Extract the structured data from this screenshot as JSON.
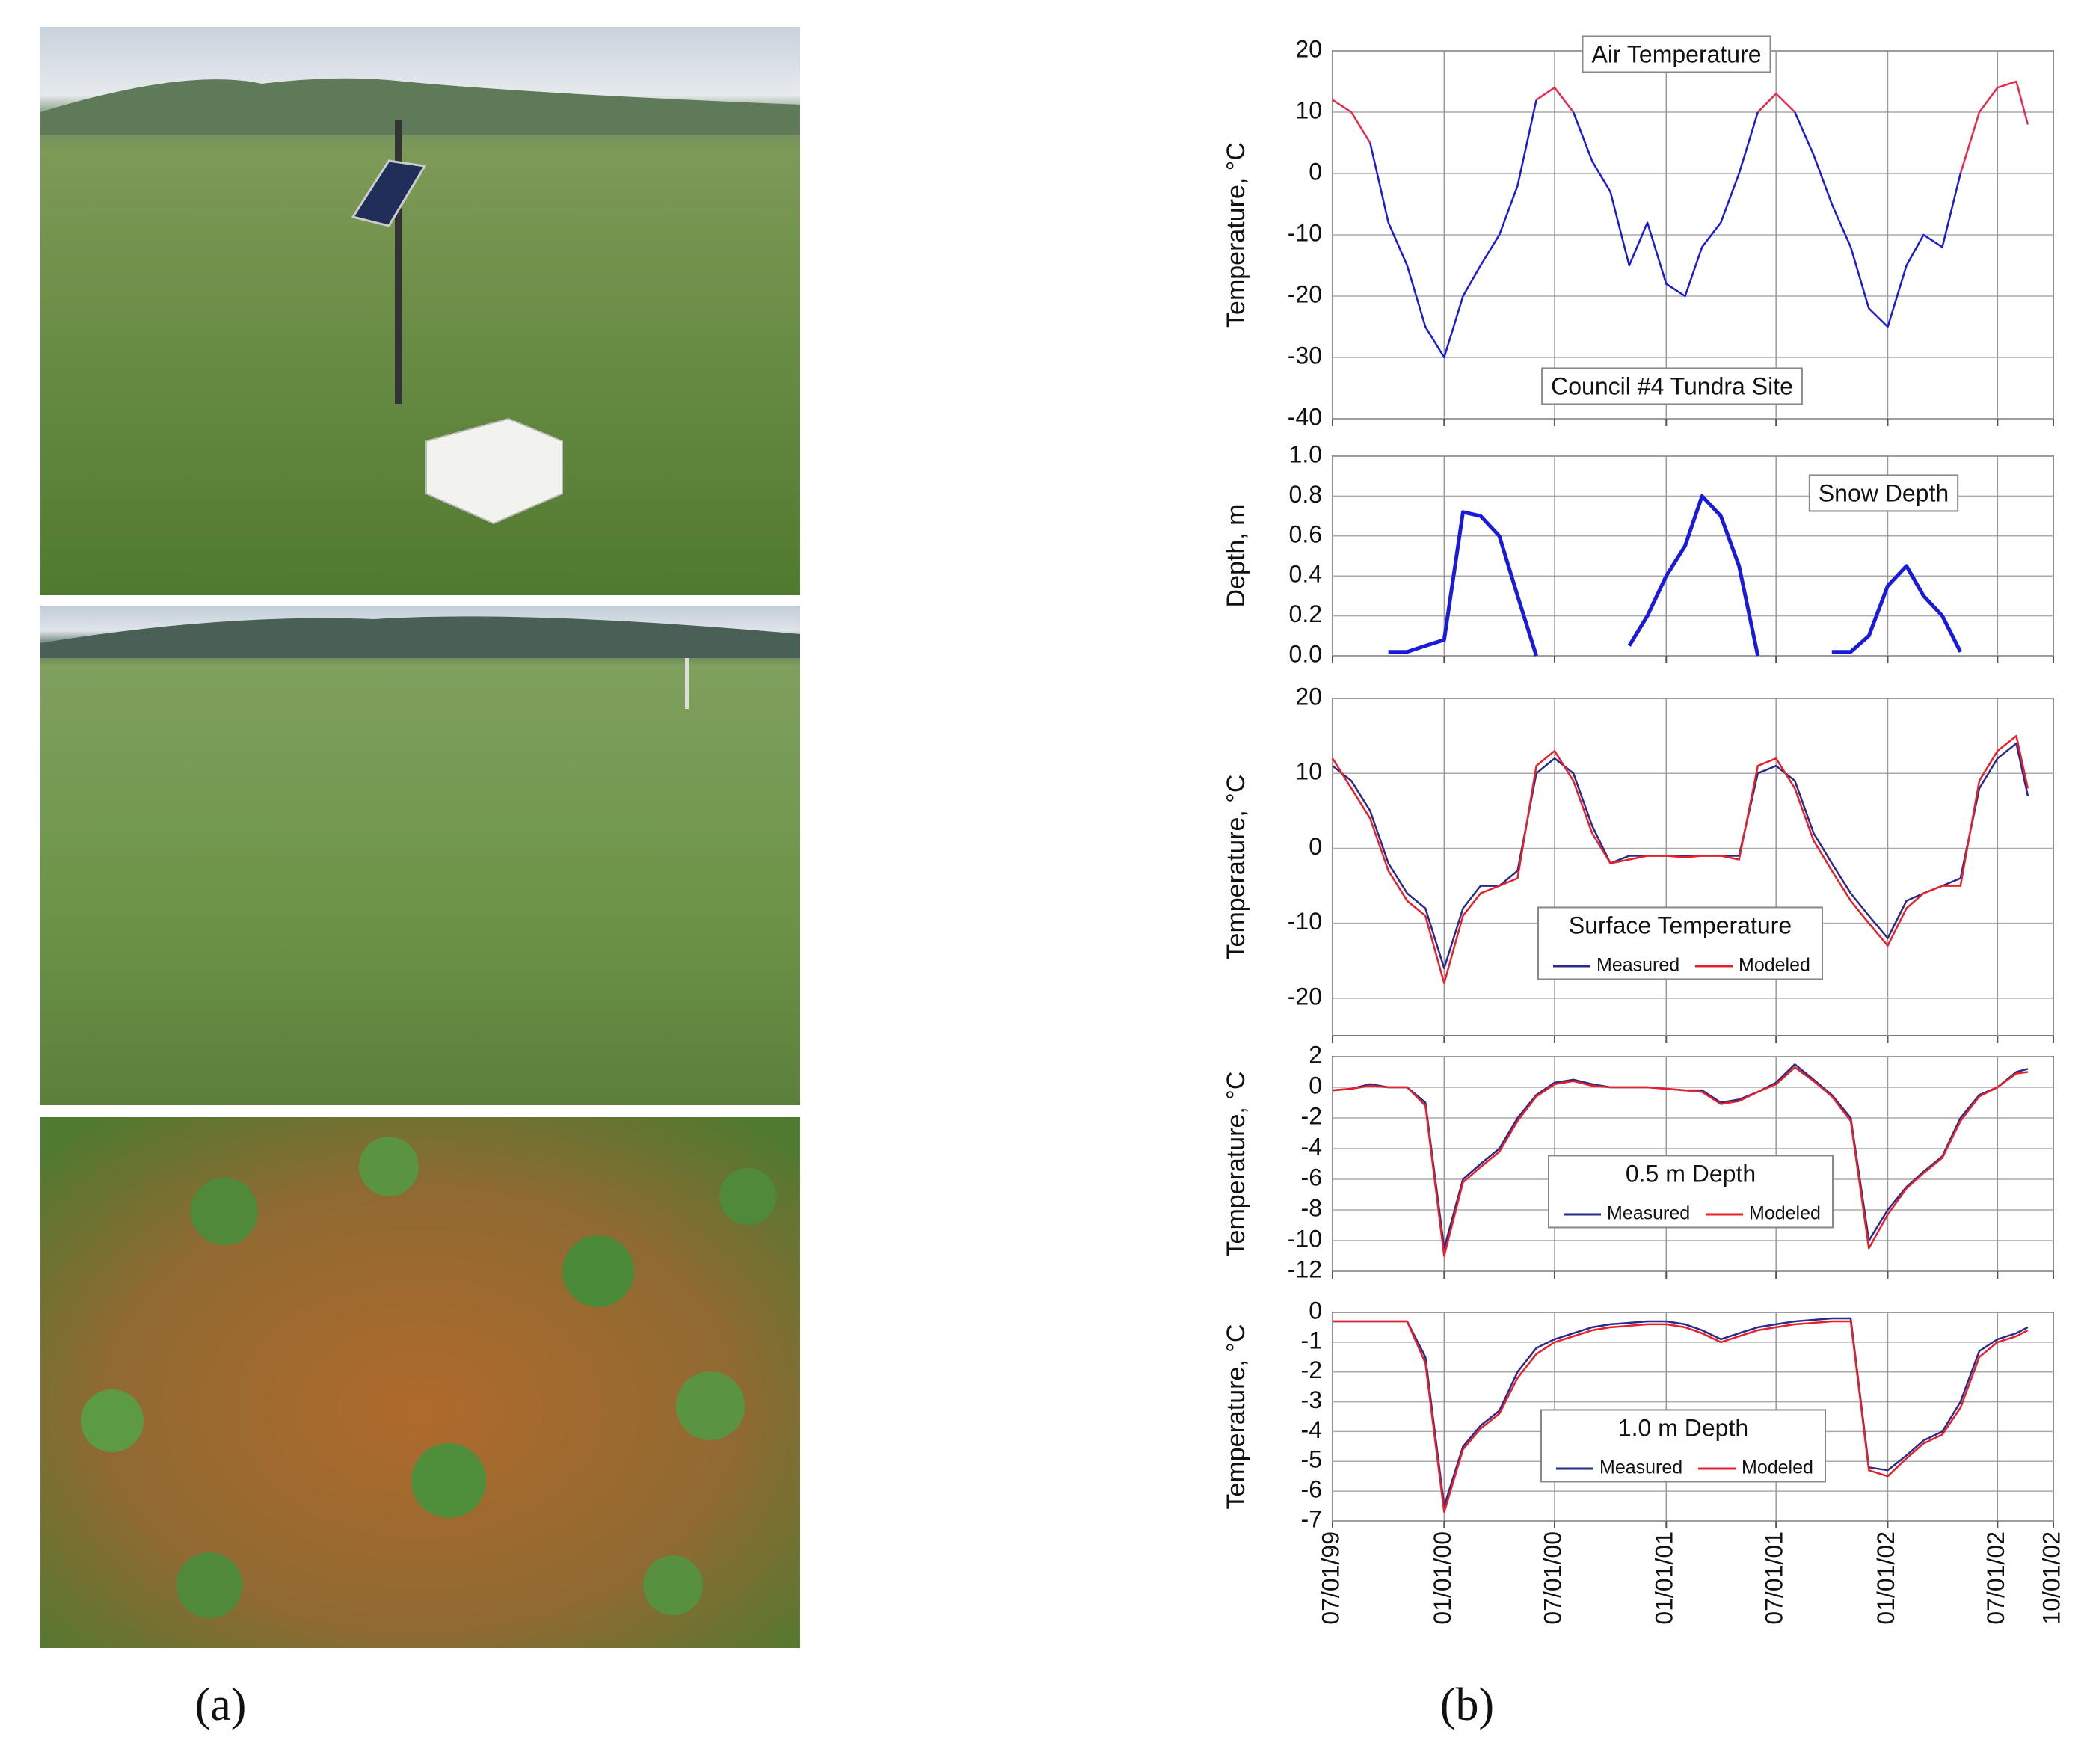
{
  "panel_labels": {
    "a": "(a)",
    "b": "(b)"
  },
  "chart_data": [
    {
      "type": "line",
      "ylabel": "Temperature, °C",
      "annotations": [
        "Air Temperature",
        "Council #4 Tundra Site"
      ],
      "x": [
        "1999-07-01",
        "1999-08-01",
        "1999-09-01",
        "1999-10-01",
        "1999-11-01",
        "1999-12-01",
        "2000-01-01",
        "2000-02-01",
        "2000-03-01",
        "2000-04-01",
        "2000-05-01",
        "2000-06-01",
        "2000-07-01",
        "2000-08-01",
        "2000-09-01",
        "2000-10-01",
        "2000-11-01",
        "2000-12-01",
        "2001-01-01",
        "2001-02-01",
        "2001-03-01",
        "2001-04-01",
        "2001-05-01",
        "2001-06-01",
        "2001-07-01",
        "2001-08-01",
        "2001-09-01",
        "2001-10-01",
        "2001-11-01",
        "2001-12-01",
        "2002-01-01",
        "2002-02-01",
        "2002-03-01",
        "2002-04-01",
        "2002-05-01",
        "2002-06-01",
        "2002-07-01",
        "2002-08-01",
        "2002-08-20"
      ],
      "series": [
        {
          "color": "#e8294a",
          "values": [
            12,
            10,
            5,
            null,
            null,
            null,
            null,
            null,
            null,
            null,
            null,
            12,
            14,
            10,
            null,
            null,
            null,
            null,
            null,
            null,
            null,
            null,
            null,
            10,
            13,
            10,
            null,
            null,
            null,
            null,
            null,
            null,
            null,
            null,
            0,
            10,
            14,
            15,
            8
          ]
        },
        {
          "color": "#1a1adc",
          "values": [
            null,
            null,
            5,
            -8,
            -15,
            -25,
            -30,
            -20,
            -15,
            -10,
            -2,
            12,
            null,
            10,
            2,
            -3,
            -15,
            -8,
            -18,
            -20,
            -12,
            -8,
            0,
            10,
            null,
            10,
            3,
            -5,
            -12,
            -22,
            -25,
            -15,
            -10,
            -12,
            0,
            null,
            null,
            null,
            null
          ]
        }
      ],
      "xlim": [
        "1999-07-01",
        "2002-10-01"
      ],
      "xticks": [
        "1999-07-01",
        "2000-01-01",
        "2000-07-01",
        "2001-01-01",
        "2001-07-01",
        "2002-01-01",
        "2002-07-01",
        "2002-10-01"
      ],
      "ylim": [
        -40,
        20
      ],
      "yticks": [
        -40,
        -30,
        -20,
        -10,
        0,
        10,
        20
      ],
      "grid": true
    },
    {
      "type": "line",
      "ylabel": "Depth, m",
      "annotations": [
        "Snow Depth"
      ],
      "x": [
        "1999-07-01",
        "1999-08-01",
        "1999-09-01",
        "1999-10-01",
        "1999-11-01",
        "1999-12-01",
        "2000-01-01",
        "2000-02-01",
        "2000-03-01",
        "2000-04-01",
        "2000-05-01",
        "2000-06-01",
        "2000-07-01",
        "2000-08-01",
        "2000-09-01",
        "2000-10-01",
        "2000-11-01",
        "2000-12-01",
        "2001-01-01",
        "2001-02-01",
        "2001-03-01",
        "2001-04-01",
        "2001-05-01",
        "2001-06-01",
        "2001-07-01",
        "2001-08-01",
        "2001-09-01",
        "2001-10-01",
        "2001-11-01",
        "2001-12-01",
        "2002-01-01",
        "2002-02-01",
        "2002-03-01",
        "2002-04-01",
        "2002-05-01",
        "2002-06-01",
        "2002-07-01",
        "2002-08-01",
        "2002-08-20"
      ],
      "series": [
        {
          "color": "#1a1adc",
          "values": [
            null,
            null,
            null,
            0.02,
            0.02,
            0.05,
            0.08,
            0.72,
            0.7,
            0.6,
            0.3,
            0,
            null,
            null,
            null,
            null,
            0.05,
            0.2,
            0.4,
            0.55,
            0.8,
            0.7,
            0.45,
            0,
            null,
            null,
            null,
            0.02,
            0.02,
            0.1,
            0.35,
            0.45,
            0.3,
            0.2,
            0.02,
            null,
            null,
            null,
            null
          ]
        }
      ],
      "xlim": [
        "1999-07-01",
        "2002-10-01"
      ],
      "xticks": [
        "1999-07-01",
        "2000-01-01",
        "2000-07-01",
        "2001-01-01",
        "2001-07-01",
        "2002-01-01",
        "2002-07-01",
        "2002-10-01"
      ],
      "ylim": [
        0,
        1
      ],
      "yticks": [
        {
          "value": 0,
          "label": "0.0"
        },
        0.2,
        0.4,
        0.6,
        0.8,
        {
          "value": 1,
          "label": "1.0"
        }
      ],
      "grid": true
    },
    {
      "type": "line",
      "ylabel": "Temperature, °C",
      "annotations": [
        "Surface Temperature"
      ],
      "x": [
        "1999-07-01",
        "1999-08-01",
        "1999-09-01",
        "1999-10-01",
        "1999-11-01",
        "1999-12-01",
        "2000-01-01",
        "2000-02-01",
        "2000-03-01",
        "2000-04-01",
        "2000-05-01",
        "2000-06-01",
        "2000-07-01",
        "2000-08-01",
        "2000-09-01",
        "2000-10-01",
        "2000-11-01",
        "2000-12-01",
        "2001-01-01",
        "2001-02-01",
        "2001-03-01",
        "2001-04-01",
        "2001-05-01",
        "2001-06-01",
        "2001-07-01",
        "2001-08-01",
        "2001-09-01",
        "2001-10-01",
        "2001-11-01",
        "2001-12-01",
        "2002-01-01",
        "2002-02-01",
        "2002-03-01",
        "2002-04-01",
        "2002-05-01",
        "2002-06-01",
        "2002-07-01",
        "2002-08-01",
        "2002-08-20"
      ],
      "series": [
        {
          "name": "Measured",
          "color": "#2a2a8c",
          "values": [
            11,
            9,
            5,
            -2,
            -6,
            -8,
            -16,
            -8,
            -5,
            -5,
            -3,
            10,
            12,
            10,
            3,
            -2,
            -1,
            -1,
            -1,
            -1,
            -1,
            -1,
            -1,
            10,
            11,
            9,
            2,
            -2,
            -6,
            -9,
            -12,
            -7,
            -6,
            -5,
            -4,
            8,
            12,
            14,
            7
          ]
        },
        {
          "name": "Modeled",
          "color": "#e8202a",
          "values": [
            12,
            8,
            4,
            -3,
            -7,
            -9,
            -18,
            -9,
            -6,
            -5,
            -4,
            11,
            13,
            9,
            2,
            -2,
            -1.5,
            -1,
            -1,
            -1.2,
            -1,
            -1,
            -1.5,
            11,
            12,
            8,
            1,
            -3,
            -7,
            -10,
            -13,
            -8,
            -6,
            -5,
            -5,
            9,
            13,
            15,
            8
          ]
        }
      ],
      "legend": "lower center",
      "xlim": [
        "1999-07-01",
        "2002-10-01"
      ],
      "xticks": [
        "1999-07-01",
        "2000-01-01",
        "2000-07-01",
        "2001-01-01",
        "2001-07-01",
        "2002-01-01",
        "2002-07-01",
        "2002-10-01"
      ],
      "ylim": [
        -25,
        20
      ],
      "yticks": [
        -20,
        -10,
        0,
        10,
        20
      ],
      "grid": true
    },
    {
      "type": "line",
      "ylabel": "Temperature, °C",
      "annotations": [
        "0.5 m Depth"
      ],
      "x": [
        "1999-07-01",
        "1999-08-01",
        "1999-09-01",
        "1999-10-01",
        "1999-11-01",
        "1999-12-01",
        "2000-01-01",
        "2000-02-01",
        "2000-03-01",
        "2000-04-01",
        "2000-05-01",
        "2000-06-01",
        "2000-07-01",
        "2000-08-01",
        "2000-09-01",
        "2000-10-01",
        "2000-11-01",
        "2000-12-01",
        "2001-01-01",
        "2001-02-01",
        "2001-03-01",
        "2001-04-01",
        "2001-05-01",
        "2001-06-01",
        "2001-07-01",
        "2001-08-01",
        "2001-09-01",
        "2001-10-01",
        "2001-11-01",
        "2001-12-01",
        "2002-01-01",
        "2002-02-01",
        "2002-03-01",
        "2002-04-01",
        "2002-05-01",
        "2002-06-01",
        "2002-07-01",
        "2002-08-01",
        "2002-08-20"
      ],
      "series": [
        {
          "name": "Measured",
          "color": "#2a2a8c",
          "values": [
            -0.2,
            -0.1,
            0.2,
            0,
            0,
            -1,
            -10.5,
            -6,
            -5,
            -4,
            -2,
            -0.5,
            0.3,
            0.5,
            0.2,
            0,
            0,
            0,
            -0.1,
            -0.2,
            -0.2,
            -1,
            -0.8,
            -0.3,
            0.3,
            1.5,
            0.5,
            -0.5,
            -2,
            -10,
            -8,
            -6.5,
            -5.5,
            -4.5,
            -2,
            -0.5,
            0,
            1,
            1.2
          ]
        },
        {
          "name": "Modeled",
          "color": "#e8202a",
          "values": [
            -0.2,
            -0.1,
            0.1,
            0,
            0,
            -1.2,
            -11,
            -6.2,
            -5.2,
            -4.2,
            -2.2,
            -0.6,
            0.2,
            0.4,
            0.1,
            0,
            0,
            0,
            -0.1,
            -0.2,
            -0.3,
            -1.1,
            -0.9,
            -0.3,
            0.2,
            1.3,
            0.4,
            -0.6,
            -2.2,
            -10.5,
            -8.3,
            -6.6,
            -5.6,
            -4.6,
            -2.2,
            -0.6,
            0,
            0.9,
            1
          ]
        }
      ],
      "legend": "lower center",
      "xlim": [
        "1999-07-01",
        "2002-10-01"
      ],
      "xticks": [
        "1999-07-01",
        "2000-01-01",
        "2000-07-01",
        "2001-01-01",
        "2001-07-01",
        "2002-01-01",
        "2002-07-01",
        "2002-10-01"
      ],
      "ylim": [
        -12,
        2
      ],
      "yticks": [
        -12,
        -10,
        -8,
        -6,
        -4,
        -2,
        0,
        2
      ],
      "grid": true
    },
    {
      "type": "line",
      "ylabel": "Temperature, °C",
      "annotations": [
        "1.0 m Depth"
      ],
      "x": [
        "1999-07-01",
        "1999-08-01",
        "1999-09-01",
        "1999-10-01",
        "1999-11-01",
        "1999-12-01",
        "2000-01-01",
        "2000-02-01",
        "2000-03-01",
        "2000-04-01",
        "2000-05-01",
        "2000-06-01",
        "2000-07-01",
        "2000-08-01",
        "2000-09-01",
        "2000-10-01",
        "2000-11-01",
        "2000-12-01",
        "2001-01-01",
        "2001-02-01",
        "2001-03-01",
        "2001-04-01",
        "2001-05-01",
        "2001-06-01",
        "2001-07-01",
        "2001-08-01",
        "2001-09-01",
        "2001-10-01",
        "2001-11-01",
        "2001-12-01",
        "2002-01-01",
        "2002-02-01",
        "2002-03-01",
        "2002-04-01",
        "2002-05-01",
        "2002-06-01",
        "2002-07-01",
        "2002-08-01",
        "2002-08-20"
      ],
      "series": [
        {
          "name": "Measured",
          "color": "#2a2a8c",
          "values": [
            -0.3,
            -0.3,
            -0.3,
            -0.3,
            -0.3,
            -1.5,
            -6.5,
            -4.5,
            -3.8,
            -3.3,
            -2,
            -1.2,
            -0.9,
            -0.7,
            -0.5,
            -0.4,
            -0.35,
            -0.3,
            -0.3,
            -0.4,
            -0.6,
            -0.9,
            -0.7,
            -0.5,
            -0.4,
            -0.3,
            -0.25,
            -0.2,
            -0.2,
            -5.2,
            -5.3,
            -4.8,
            -4.3,
            -4,
            -3,
            -1.3,
            -0.9,
            -0.7,
            -0.5
          ]
        },
        {
          "name": "Modeled",
          "color": "#e8202a",
          "values": [
            -0.3,
            -0.3,
            -0.3,
            -0.3,
            -0.3,
            -1.7,
            -6.7,
            -4.6,
            -3.9,
            -3.4,
            -2.2,
            -1.4,
            -1,
            -0.8,
            -0.6,
            -0.5,
            -0.45,
            -0.4,
            -0.4,
            -0.5,
            -0.7,
            -1,
            -0.8,
            -0.6,
            -0.5,
            -0.4,
            -0.35,
            -0.3,
            -0.3,
            -5.3,
            -5.5,
            -4.9,
            -4.4,
            -4.1,
            -3.2,
            -1.5,
            -1,
            -0.8,
            -0.6
          ]
        }
      ],
      "legend": "lower center",
      "xlim": [
        "1999-07-01",
        "2002-10-01"
      ],
      "xticks": [
        {
          "value": "1999-07-01",
          "label": "07/01/99"
        },
        {
          "value": "2000-01-01",
          "label": "01/01/00"
        },
        {
          "value": "2000-07-01",
          "label": "07/01/00"
        },
        {
          "value": "2001-01-01",
          "label": "01/01/01"
        },
        {
          "value": "2001-07-01",
          "label": "07/01/01"
        },
        {
          "value": "2002-01-01",
          "label": "01/01/02"
        },
        {
          "value": "2002-07-01",
          "label": "07/01/02"
        },
        {
          "value": "2002-10-01",
          "label": "10/01/02"
        }
      ],
      "ylim": [
        -7,
        0
      ],
      "yticks": [
        -7,
        -6,
        -5,
        -4,
        -3,
        -2,
        -1,
        0
      ],
      "grid": true
    }
  ]
}
